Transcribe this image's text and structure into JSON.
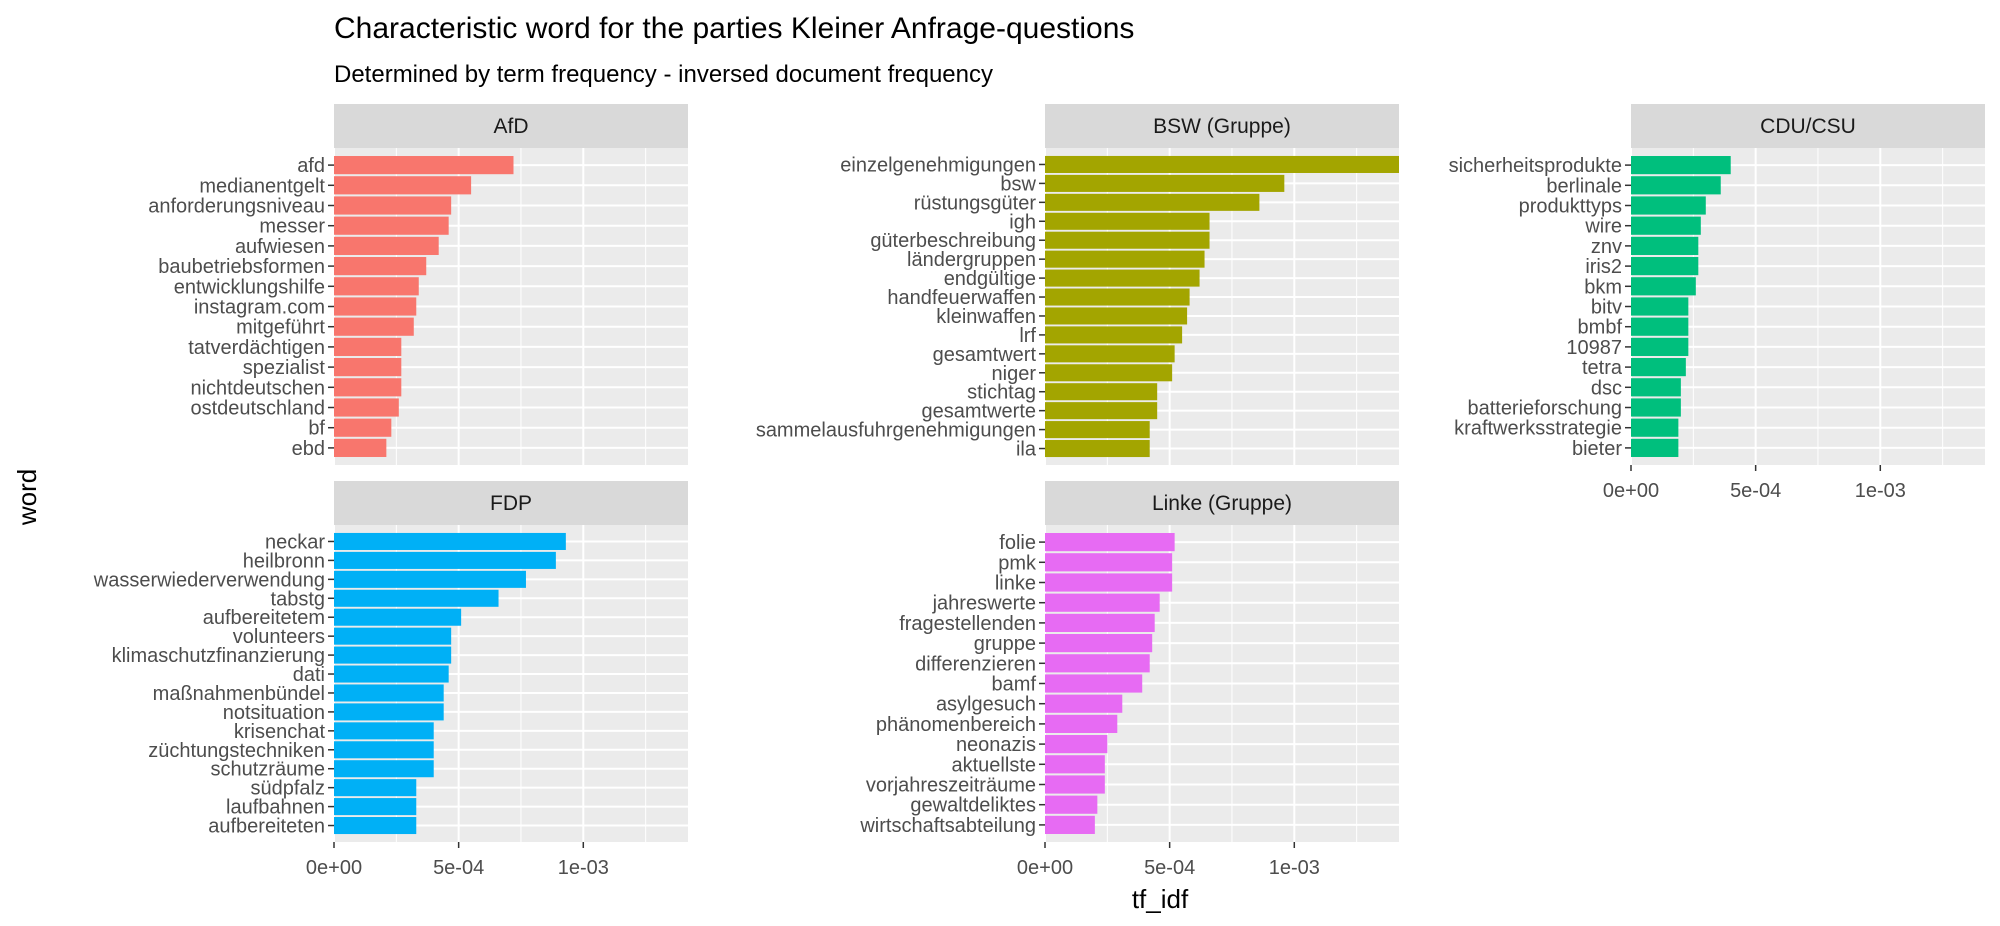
{
  "chart_data": {
    "type": "bar",
    "title": "Characteristic word for the parties Kleiner Anfrage-questions",
    "subtitle": "Determined by term frequency - inversed document frequency",
    "xlabel": "tf_idf",
    "ylabel": "word",
    "xlim": [
      0,
      0.00142
    ],
    "x_ticks": [
      0,
      0.0005,
      0.001
    ],
    "x_tick_labels": [
      "0e+00",
      "5e-04",
      "1e-03"
    ],
    "grid": true,
    "legend": "none",
    "panels": [
      {
        "name": "AfD",
        "color": "#F8766D",
        "categories": [
          "afd",
          "medianentgelt",
          "anforderungsniveau",
          "messer",
          "aufwiesen",
          "baubetriebsformen",
          "entwicklungshilfe",
          "instagram.com",
          "mitgeführt",
          "tatverdächtigen",
          "spezialist",
          "nichtdeutschen",
          "ostdeutschland",
          "bf",
          "ebd"
        ],
        "values": [
          0.00072,
          0.00055,
          0.00047,
          0.00046,
          0.00042,
          0.00037,
          0.00034,
          0.00033,
          0.00032,
          0.00027,
          0.00027,
          0.00027,
          0.00026,
          0.00023,
          0.00021
        ]
      },
      {
        "name": "BSW (Gruppe)",
        "color": "#A3A500",
        "categories": [
          "einzelgenehmigungen",
          "bsw",
          "rüstungsgüter",
          "igh",
          "güterbeschreibung",
          "ländergruppen",
          "endgültige",
          "handfeuerwaffen",
          "kleinwaffen",
          "lrf",
          "gesamtwert",
          "niger",
          "stichtag",
          "gesamtwerte",
          "sammelausfuhrgenehmigungen",
          "ila"
        ],
        "values": [
          0.00142,
          0.00096,
          0.00086,
          0.00066,
          0.00066,
          0.00064,
          0.00062,
          0.00058,
          0.00057,
          0.00055,
          0.00052,
          0.00051,
          0.00045,
          0.00045,
          0.00042,
          0.00042
        ]
      },
      {
        "name": "CDU/CSU",
        "color": "#00BF7D",
        "categories": [
          "sicherheitsprodukte",
          "berlinale",
          "produkttyps",
          "wire",
          "znv",
          "iris2",
          "bkm",
          "bitv",
          "bmbf",
          "10987",
          "tetra",
          "dsc",
          "batterieforschung",
          "kraftwerksstrategie",
          "bieter"
        ],
        "values": [
          0.0004,
          0.00036,
          0.0003,
          0.00028,
          0.00027,
          0.00027,
          0.00026,
          0.00023,
          0.00023,
          0.00023,
          0.00022,
          0.0002,
          0.0002,
          0.00019,
          0.00019
        ]
      },
      {
        "name": "FDP",
        "color": "#00B0F6",
        "categories": [
          "neckar",
          "heilbronn",
          "wasserwiederverwendung",
          "tabstg",
          "aufbereitetem",
          "volunteers",
          "klimaschutzfinanzierung",
          "dati",
          "maßnahmenbündel",
          "notsituation",
          "krisenchat",
          "züchtungstechniken",
          "schutzräume",
          "südpfalz",
          "laufbahnen",
          "aufbereiteten"
        ],
        "values": [
          0.00093,
          0.00089,
          0.00077,
          0.00066,
          0.00051,
          0.00047,
          0.00047,
          0.00046,
          0.00044,
          0.00044,
          0.0004,
          0.0004,
          0.0004,
          0.00033,
          0.00033,
          0.00033
        ]
      },
      {
        "name": "Linke (Gruppe)",
        "color": "#E76BF3",
        "categories": [
          "folie",
          "pmk",
          "linke",
          "jahreswerte",
          "fragestellenden",
          "gruppe",
          "differenzieren",
          "bamf",
          "asylgesuch",
          "phänomenbereich",
          "neonazis",
          "aktuellste",
          "vorjahreszeiträume",
          "gewaltdeliktes",
          "wirtschaftsabteilung"
        ],
        "values": [
          0.00052,
          0.00051,
          0.00051,
          0.00046,
          0.00044,
          0.00043,
          0.00042,
          0.00039,
          0.00031,
          0.00029,
          0.00025,
          0.00024,
          0.00024,
          0.00021,
          0.0002
        ]
      }
    ]
  }
}
